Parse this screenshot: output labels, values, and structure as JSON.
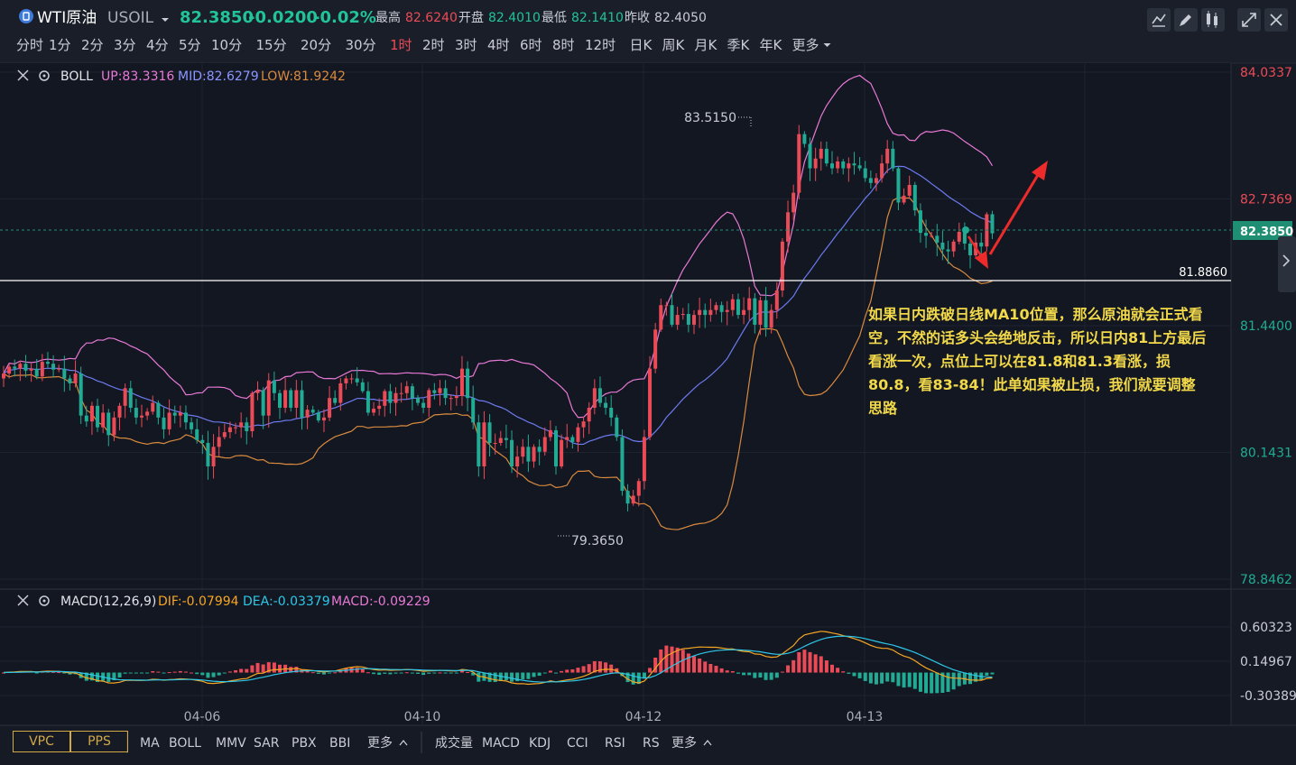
{
  "header": {
    "symbol": "WTI原油",
    "code": "USOIL",
    "price": "82.3850",
    "change": "-0.0200",
    "change_pct": "-0.02%",
    "stats": [
      {
        "label": "最高",
        "value": "82.6240"
      },
      {
        "label": "开盘",
        "value": "82.4010"
      },
      {
        "label": "最低",
        "value": "82.1410"
      },
      {
        "label": "昨收",
        "value": "82.4050"
      }
    ]
  },
  "periods": [
    "分时",
    "1分",
    "2分",
    "3分",
    "4分",
    "5分",
    "10分",
    "15分",
    "20分",
    "30分",
    "1时",
    "2时",
    "3时",
    "4时",
    "6时",
    "8时",
    "12时",
    "日K",
    "周K",
    "月K",
    "季K",
    "年K",
    "更多"
  ],
  "active_period": "1时",
  "boll": {
    "name": "BOLL",
    "up": "UP:83.3316",
    "mid": "MID:82.6279",
    "low": "LOW:81.9242"
  },
  "macd": {
    "name": "MACD(12,26,9)",
    "dif": "DIF:-0.07994",
    "dea": "DEA:-0.03379",
    "macd": "MACD:-0.09229"
  },
  "main_axis": {
    "ticks": [
      "84.0337",
      "82.7369",
      "81.4400",
      "80.1431",
      "78.8462"
    ],
    "current": "82.3850",
    "hline": "81.8860"
  },
  "macd_axis": {
    "ticks": [
      "0.60323",
      "0.14967",
      "-0.30389"
    ]
  },
  "date_labels": [
    "04-06",
    "04-10",
    "04-12",
    "04-13"
  ],
  "markers": {
    "high": "83.5150",
    "low": "79.3650"
  },
  "annotation": "如果日内跌破日线MA10位置，那么原油就会正式看空，不然的话多头会绝地反击，所以日内81上方最后看涨一次，点位上可以在81.8和81.3看涨，损80.8，看83-84！此单如果被止损，我们就要调整思路",
  "bottom": {
    "buttons": [
      "VPC",
      "PPS"
    ],
    "indicators_main": [
      "MA",
      "BOLL",
      "MMV",
      "SAR",
      "PBX",
      "BBI",
      "更多"
    ],
    "indicators_sub": [
      "成交量",
      "MACD",
      "KDJ",
      "CCI",
      "RSI",
      "RS",
      "更多"
    ]
  },
  "colors": {
    "up": "#eb4b57",
    "down": "#22ab94",
    "boll_up": "#e879d6",
    "boll_mid": "#6c7bf0",
    "boll_low": "#d98a3e",
    "dif": "#f5a623",
    "dea": "#2ec7e8",
    "price_badge": "#1f8f74",
    "annotation": "#f2d94a",
    "arrow": "#ee2b2b"
  },
  "icons": [
    "candle-toggle-icon",
    "pen-icon",
    "draw-tool-icon",
    "fullscreen-icon",
    "close-icon",
    "expand-right-icon",
    "settings-icon"
  ],
  "chart_data": [
    {
      "type": "candlestick",
      "title": "WTI原油 USOIL 1时",
      "y_range": [
        78.8462,
        84.0337
      ],
      "x_labels": [
        "04-06",
        "04-10",
        "04-12",
        "04-13"
      ],
      "markers": {
        "high": 83.515,
        "low": 79.365
      },
      "horizontal_line": 81.886,
      "last_price": 82.385,
      "indicators": {
        "BOLL": {
          "UP": 83.3316,
          "MID": 82.6279,
          "LOW": 81.9242
        }
      },
      "close": [
        80.95,
        81.02,
        81.0,
        81.05,
        80.98,
        81.0,
        80.92,
        81.07,
        81.05,
        80.99,
        81.0,
        80.9,
        80.85,
        80.95,
        80.52,
        80.46,
        80.62,
        80.4,
        80.55,
        80.32,
        80.5,
        80.62,
        80.8,
        80.6,
        80.5,
        80.52,
        80.56,
        80.65,
        80.5,
        80.38,
        80.55,
        80.52,
        80.55,
        80.45,
        80.38,
        80.27,
        80.24,
        80.0,
        80.2,
        80.3,
        80.35,
        80.4,
        80.4,
        80.45,
        80.36,
        80.75,
        80.78,
        80.52,
        80.88,
        80.75,
        80.6,
        80.78,
        80.6,
        80.78,
        80.5,
        80.58,
        80.55,
        80.47,
        80.5,
        80.7,
        80.65,
        80.85,
        80.9,
        80.9,
        80.86,
        80.77,
        80.55,
        80.59,
        80.62,
        80.77,
        80.65,
        80.75,
        80.75,
        80.82,
        80.7,
        80.65,
        80.6,
        80.78,
        80.75,
        80.8,
        80.7,
        80.7,
        80.72,
        81.0,
        80.7,
        80.45,
        80.0,
        80.45,
        80.24,
        80.24,
        80.29,
        80.27,
        80.0,
        80.1,
        80.2,
        80.05,
        80.2,
        80.15,
        80.3,
        80.37,
        80.0,
        80.27,
        80.3,
        80.25,
        80.4,
        80.46,
        80.6,
        80.8,
        80.65,
        80.6,
        80.5,
        80.3,
        79.75,
        79.62,
        79.7,
        79.85,
        80.3,
        81.0,
        81.4,
        81.65,
        81.65,
        81.45,
        81.55,
        81.56,
        81.45,
        81.55,
        81.6,
        81.55,
        81.6,
        81.65,
        81.58,
        81.6,
        81.71,
        81.55,
        81.6,
        81.72,
        81.45,
        81.7,
        81.42,
        81.6,
        81.8,
        82.3,
        82.6,
        82.8,
        83.4,
        83.3,
        83.05,
        83.15,
        83.25,
        83.1,
        83.05,
        83.12,
        83.05,
        83.1,
        83.08,
        83.05,
        82.95,
        82.9,
        82.95,
        83.1,
        83.25,
        83.05,
        82.7,
        82.77,
        82.88,
        82.62,
        82.39,
        82.36,
        82.36,
        82.29,
        82.22,
        82.2,
        82.3,
        82.4,
        82.28,
        82.16,
        82.29,
        82.25,
        82.58,
        82.385
      ],
      "MACD": {
        "DIF": -0.07994,
        "DEA": -0.03379,
        "MACD": -0.09229,
        "params": [
          12,
          26,
          9
        ]
      }
    }
  ]
}
